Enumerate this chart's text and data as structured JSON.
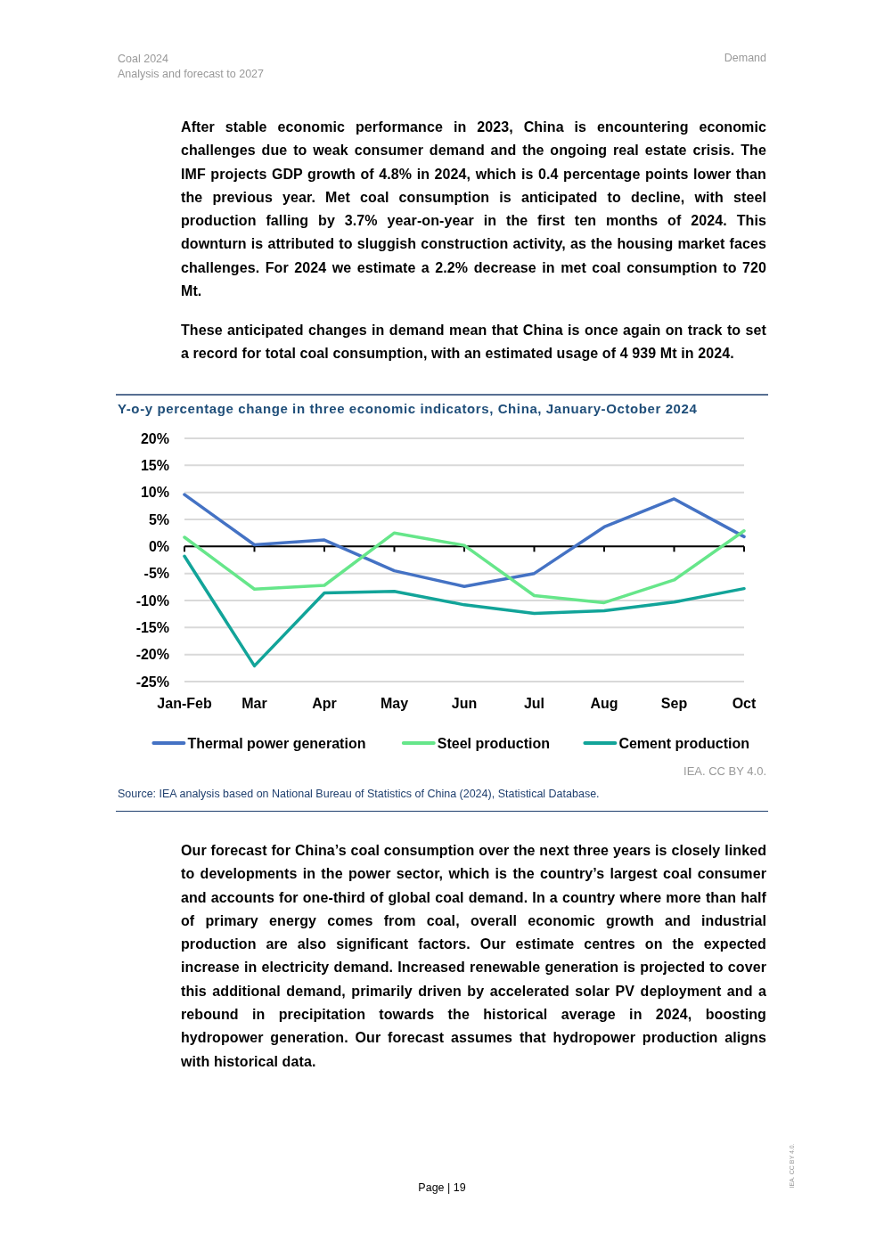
{
  "chart_data": {
    "type": "line",
    "title": "Y-o-y percentage change in three economic indicators, China, January-October 2024",
    "categories": [
      "Jan-Feb",
      "Mar",
      "Apr",
      "May",
      "Jun",
      "Jul",
      "Aug",
      "Sep",
      "Oct"
    ],
    "series": [
      {
        "name": "Thermal power generation",
        "color": "#4472c4",
        "values": [
          9.6,
          0.3,
          1.2,
          -4.5,
          -7.4,
          -5.0,
          3.6,
          8.8,
          1.8
        ]
      },
      {
        "name": "Steel production",
        "color": "#66e68a",
        "values": [
          1.7,
          -7.9,
          -7.2,
          2.5,
          0.2,
          -9.1,
          -10.4,
          -6.2,
          2.9
        ]
      },
      {
        "name": "Cement production",
        "color": "#12a499",
        "values": [
          -1.8,
          -22.1,
          -8.6,
          -8.3,
          -10.8,
          -12.4,
          -11.9,
          -10.3,
          -7.8
        ]
      }
    ],
    "ylim": [
      -25,
      20
    ],
    "yticks": [
      {
        "value": -25,
        "label": "-25%"
      },
      {
        "value": -20,
        "label": "-20%"
      },
      {
        "value": -15,
        "label": "-15%"
      },
      {
        "value": -10,
        "label": "-10%"
      },
      {
        "value": -5,
        "label": "-5%"
      },
      {
        "value": 0,
        "label": "0%"
      },
      {
        "value": 5,
        "label": "5%"
      },
      {
        "value": 10,
        "label": "10%"
      },
      {
        "value": 15,
        "label": "15%"
      },
      {
        "value": 20,
        "label": "20%"
      }
    ],
    "grid": "y",
    "legend": "bottom",
    "line_style": "solid",
    "annotations": [
      "Coal 2024",
      "Analysis and forecast to 2027",
      "Demand",
      "After stable economic performance in 2023, China is encountering economic challenges due to weak consumer demand and the ongoing real estate crisis. The IMF projects GDP growth of 4.8% in 2024, which is 0.4 percentage points lower than the previous year. Met coal consumption is anticipated to decline, with steel production falling by 3.7% year-on-year in the first ten months of 2024. This downturn is attributed to sluggish construction activity, as the housing market faces challenges. For 2024 we estimate a 2.2% decrease in met coal consumption to 720 Mt.",
      "These anticipated changes in demand mean that China is once again on track to set a record for total coal consumption, with an estimated usage of 4 939 Mt in 2024.",
      "IEA. CC BY 4.0.",
      "Source: IEA analysis based on National Bureau of Statistics of China (2024), Statistical Database.",
      "Our forecast for China’s coal consumption over the next three years is closely linked to developments in the power sector, which is the country’s largest coal consumer and accounts for one-third of global coal demand. In a country where more than half of primary energy comes from coal, overall economic growth and industrial production are also significant factors. Our estimate centres on the expected increase in electricity demand. Increased renewable generation is projected to cover this additional demand, primarily driven by accelerated solar PV deployment and a rebound in precipitation towards the historical average in 2024, boosting hydropower generation. Our forecast assumes that hydropower production aligns with historical data.",
      "Page | 19",
      "IEA. CC BY 4.0."
    ]
  }
}
